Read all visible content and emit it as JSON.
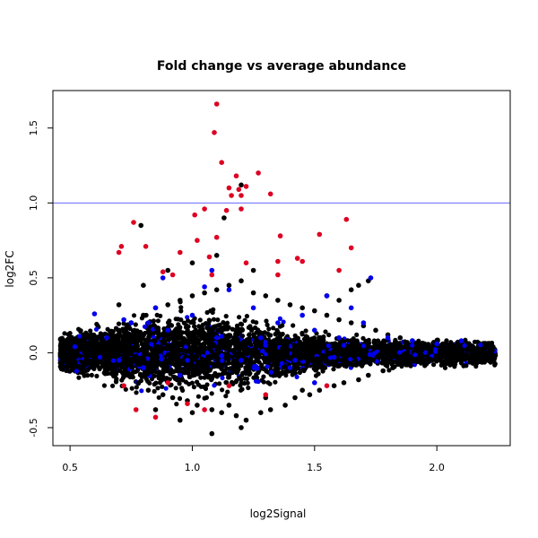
{
  "chart_data": {
    "type": "scatter",
    "title": "Fold change vs average abundance",
    "xlabel": "log2Signal",
    "ylabel": "log2FC",
    "xlim": [
      0.43,
      2.3
    ],
    "ylim": [
      -0.62,
      1.75
    ],
    "xticks": [
      0.5,
      1.0,
      1.5,
      2.0
    ],
    "xtick_labels": [
      "0.5",
      "1.0",
      "1.5",
      "2.0"
    ],
    "yticks": [
      -0.5,
      0.0,
      0.5,
      1.0,
      1.5
    ],
    "ytick_labels": [
      "-0.5",
      "0.0",
      "0.5",
      "1.0",
      "1.5"
    ],
    "grid": false,
    "reference_line": {
      "y": 1.0,
      "color": "#6666ff"
    },
    "series": [
      {
        "color": "#000000",
        "points": [
          [
            0.47,
            0.0
          ],
          [
            0.5,
            0.02
          ],
          [
            0.52,
            -0.03
          ],
          [
            0.55,
            0.05
          ],
          [
            0.58,
            -0.06
          ],
          [
            0.6,
            0.08
          ],
          [
            0.62,
            -0.1
          ],
          [
            0.65,
            0.12
          ],
          [
            0.68,
            -0.12
          ],
          [
            0.7,
            0.15
          ],
          [
            0.72,
            -0.15
          ],
          [
            0.75,
            0.2
          ],
          [
            0.78,
            -0.2
          ],
          [
            0.8,
            0.25
          ],
          [
            0.82,
            -0.25
          ],
          [
            0.85,
            0.3
          ],
          [
            0.88,
            -0.28
          ],
          [
            0.9,
            0.32
          ],
          [
            0.92,
            -0.3
          ],
          [
            0.95,
            0.35
          ],
          [
            0.98,
            -0.32
          ],
          [
            1.0,
            0.38
          ],
          [
            1.02,
            -0.35
          ],
          [
            1.05,
            0.4
          ],
          [
            1.08,
            -0.38
          ],
          [
            1.1,
            0.42
          ],
          [
            1.12,
            -0.4
          ],
          [
            1.15,
            0.45
          ],
          [
            1.18,
            -0.42
          ],
          [
            1.2,
            0.48
          ],
          [
            1.22,
            -0.45
          ],
          [
            1.25,
            0.4
          ],
          [
            1.28,
            -0.4
          ],
          [
            1.3,
            0.38
          ],
          [
            1.32,
            -0.38
          ],
          [
            1.35,
            0.35
          ],
          [
            1.38,
            -0.35
          ],
          [
            1.4,
            0.32
          ],
          [
            1.42,
            -0.3
          ],
          [
            1.45,
            0.3
          ],
          [
            1.48,
            -0.28
          ],
          [
            1.5,
            0.28
          ],
          [
            1.52,
            -0.25
          ],
          [
            1.55,
            0.25
          ],
          [
            1.58,
            -0.22
          ],
          [
            1.6,
            0.22
          ],
          [
            1.62,
            -0.2
          ],
          [
            1.65,
            0.2
          ],
          [
            1.68,
            -0.18
          ],
          [
            1.7,
            0.18
          ],
          [
            1.72,
            -0.15
          ],
          [
            1.75,
            0.15
          ],
          [
            1.78,
            -0.12
          ],
          [
            1.8,
            0.12
          ],
          [
            1.82,
            -0.1
          ],
          [
            1.85,
            0.1
          ],
          [
            1.88,
            -0.08
          ],
          [
            1.9,
            0.08
          ],
          [
            1.92,
            -0.06
          ],
          [
            1.95,
            0.06
          ],
          [
            1.98,
            -0.05
          ],
          [
            2.0,
            0.05
          ],
          [
            2.05,
            0.03
          ],
          [
            2.1,
            -0.02
          ],
          [
            2.15,
            0.02
          ],
          [
            2.2,
            -0.01
          ],
          [
            0.79,
            0.85
          ],
          [
            1.2,
            1.12
          ],
          [
            1.08,
            -0.54
          ],
          [
            1.2,
            -0.5
          ],
          [
            0.95,
            -0.45
          ],
          [
            1.13,
            0.9
          ],
          [
            0.7,
            0.32
          ],
          [
            0.8,
            0.45
          ],
          [
            0.9,
            0.55
          ],
          [
            1.0,
            0.6
          ],
          [
            1.1,
            0.65
          ],
          [
            1.25,
            0.55
          ],
          [
            1.15,
            -0.35
          ],
          [
            1.0,
            -0.4
          ],
          [
            0.85,
            -0.38
          ],
          [
            1.3,
            -0.3
          ],
          [
            1.45,
            -0.25
          ],
          [
            1.6,
            0.35
          ],
          [
            1.65,
            0.42
          ],
          [
            1.68,
            0.45
          ],
          [
            1.72,
            0.48
          ],
          [
            1.55,
            0.38
          ]
        ]
      },
      {
        "color": "#0000ee",
        "points": [
          [
            0.52,
            0.04
          ],
          [
            0.6,
            0.26
          ],
          [
            0.65,
            0.1
          ],
          [
            0.7,
            -0.05
          ],
          [
            0.75,
            0.2
          ],
          [
            0.8,
            -0.1
          ],
          [
            0.85,
            0.3
          ],
          [
            0.9,
            0.15
          ],
          [
            0.95,
            -0.15
          ],
          [
            1.0,
            0.25
          ],
          [
            1.05,
            0.44
          ],
          [
            1.1,
            0.1
          ],
          [
            1.15,
            0.42
          ],
          [
            1.2,
            -0.05
          ],
          [
            1.25,
            0.3
          ],
          [
            1.3,
            0.05
          ],
          [
            1.35,
            0.2
          ],
          [
            1.4,
            -0.1
          ],
          [
            1.45,
            0.25
          ],
          [
            1.5,
            0.15
          ],
          [
            1.55,
            0.38
          ],
          [
            1.6,
            0.1
          ],
          [
            1.65,
            0.3
          ],
          [
            1.7,
            0.2
          ],
          [
            1.73,
            0.5
          ],
          [
            1.8,
            0.1
          ],
          [
            1.9,
            0.08
          ],
          [
            2.0,
            0.06
          ],
          [
            2.1,
            0.08
          ],
          [
            0.88,
            0.5
          ],
          [
            1.08,
            0.55
          ],
          [
            0.72,
            0.22
          ],
          [
            0.82,
            0.2
          ],
          [
            0.98,
            -0.05
          ],
          [
            1.12,
            -0.02
          ],
          [
            1.28,
            0.1
          ],
          [
            1.42,
            -0.05
          ],
          [
            1.58,
            -0.03
          ],
          [
            1.62,
            0.05
          ],
          [
            1.5,
            -0.2
          ]
        ]
      },
      {
        "color": "#dd0022",
        "points": [
          [
            1.1,
            1.66
          ],
          [
            1.09,
            1.47
          ],
          [
            1.12,
            1.27
          ],
          [
            1.27,
            1.2
          ],
          [
            1.18,
            1.18
          ],
          [
            1.15,
            1.1
          ],
          [
            1.19,
            1.09
          ],
          [
            1.22,
            1.11
          ],
          [
            1.16,
            1.05
          ],
          [
            1.2,
            1.05
          ],
          [
            1.32,
            1.06
          ],
          [
            1.14,
            0.95
          ],
          [
            1.05,
            0.96
          ],
          [
            1.2,
            0.96
          ],
          [
            1.01,
            0.92
          ],
          [
            0.76,
            0.87
          ],
          [
            1.63,
            0.89
          ],
          [
            1.1,
            0.77
          ],
          [
            1.36,
            0.78
          ],
          [
            1.52,
            0.79
          ],
          [
            0.71,
            0.71
          ],
          [
            0.81,
            0.71
          ],
          [
            1.02,
            0.75
          ],
          [
            1.65,
            0.7
          ],
          [
            0.7,
            0.67
          ],
          [
            0.95,
            0.67
          ],
          [
            1.07,
            0.64
          ],
          [
            1.22,
            0.6
          ],
          [
            1.35,
            0.61
          ],
          [
            1.43,
            0.63
          ],
          [
            1.45,
            0.61
          ],
          [
            1.6,
            0.55
          ],
          [
            1.35,
            0.52
          ],
          [
            0.88,
            0.54
          ],
          [
            0.92,
            0.52
          ],
          [
            1.08,
            0.52
          ],
          [
            0.85,
            -0.43
          ],
          [
            0.77,
            -0.38
          ],
          [
            1.05,
            -0.38
          ],
          [
            0.72,
            -0.22
          ],
          [
            0.9,
            -0.2
          ],
          [
            1.15,
            -0.22
          ],
          [
            1.3,
            -0.28
          ],
          [
            1.55,
            -0.22
          ],
          [
            0.98,
            -0.34
          ]
        ]
      }
    ],
    "notes_on_density": "Thousands of points form a dense band centered near log2FC 0, widest near log2Signal 1.0 (roughly -0.4 to 0.4) and narrowing toward both ends; the listed points are representative samples."
  }
}
